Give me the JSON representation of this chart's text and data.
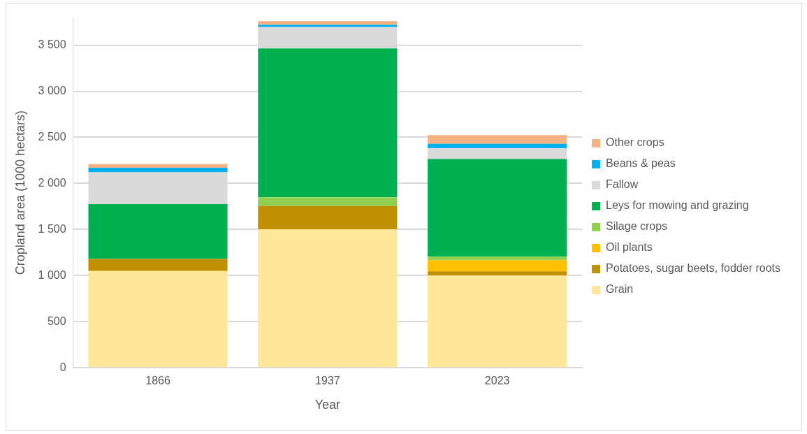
{
  "chart_data": {
    "type": "bar",
    "stacked": true,
    "xlabel": "Year",
    "ylabel": "Cropland area (1000 hectars)",
    "categories": [
      "1866",
      "1937",
      "2023"
    ],
    "series": [
      {
        "name": "Grain",
        "color": "#ffe699",
        "values": [
          1050,
          1500,
          1000
        ]
      },
      {
        "name": "Potatoes, sugar beets, fodder roots",
        "color": "#bf9000",
        "values": [
          130,
          255,
          45
        ]
      },
      {
        "name": "Oil plants",
        "color": "#ffc000",
        "values": [
          0,
          0,
          120
        ]
      },
      {
        "name": "Silage crops",
        "color": "#92d050",
        "values": [
          0,
          95,
          40
        ]
      },
      {
        "name": "Leys for mowing and grazing",
        "color": "#00b050",
        "values": [
          595,
          1615,
          1060
        ]
      },
      {
        "name": "Fallow",
        "color": "#d9d9d9",
        "values": [
          345,
          230,
          115
        ]
      },
      {
        "name": "Beans & peas",
        "color": "#00b0f0",
        "values": [
          50,
          25,
          50
        ]
      },
      {
        "name": "Other crops",
        "color": "#f4b183",
        "values": [
          40,
          40,
          95
        ]
      }
    ],
    "ylim": [
      0,
      3800
    ],
    "yticks": [
      0,
      500,
      {
        "value": 1000,
        "label": "1 000"
      },
      {
        "value": 1500,
        "label": "1 500"
      },
      {
        "value": 2000,
        "label": "2 000"
      },
      {
        "value": 2500,
        "label": "2 500"
      },
      {
        "value": 3000,
        "label": "3 000"
      },
      {
        "value": 3500,
        "label": "3 500"
      }
    ],
    "grid": "y",
    "legend": "right"
  }
}
